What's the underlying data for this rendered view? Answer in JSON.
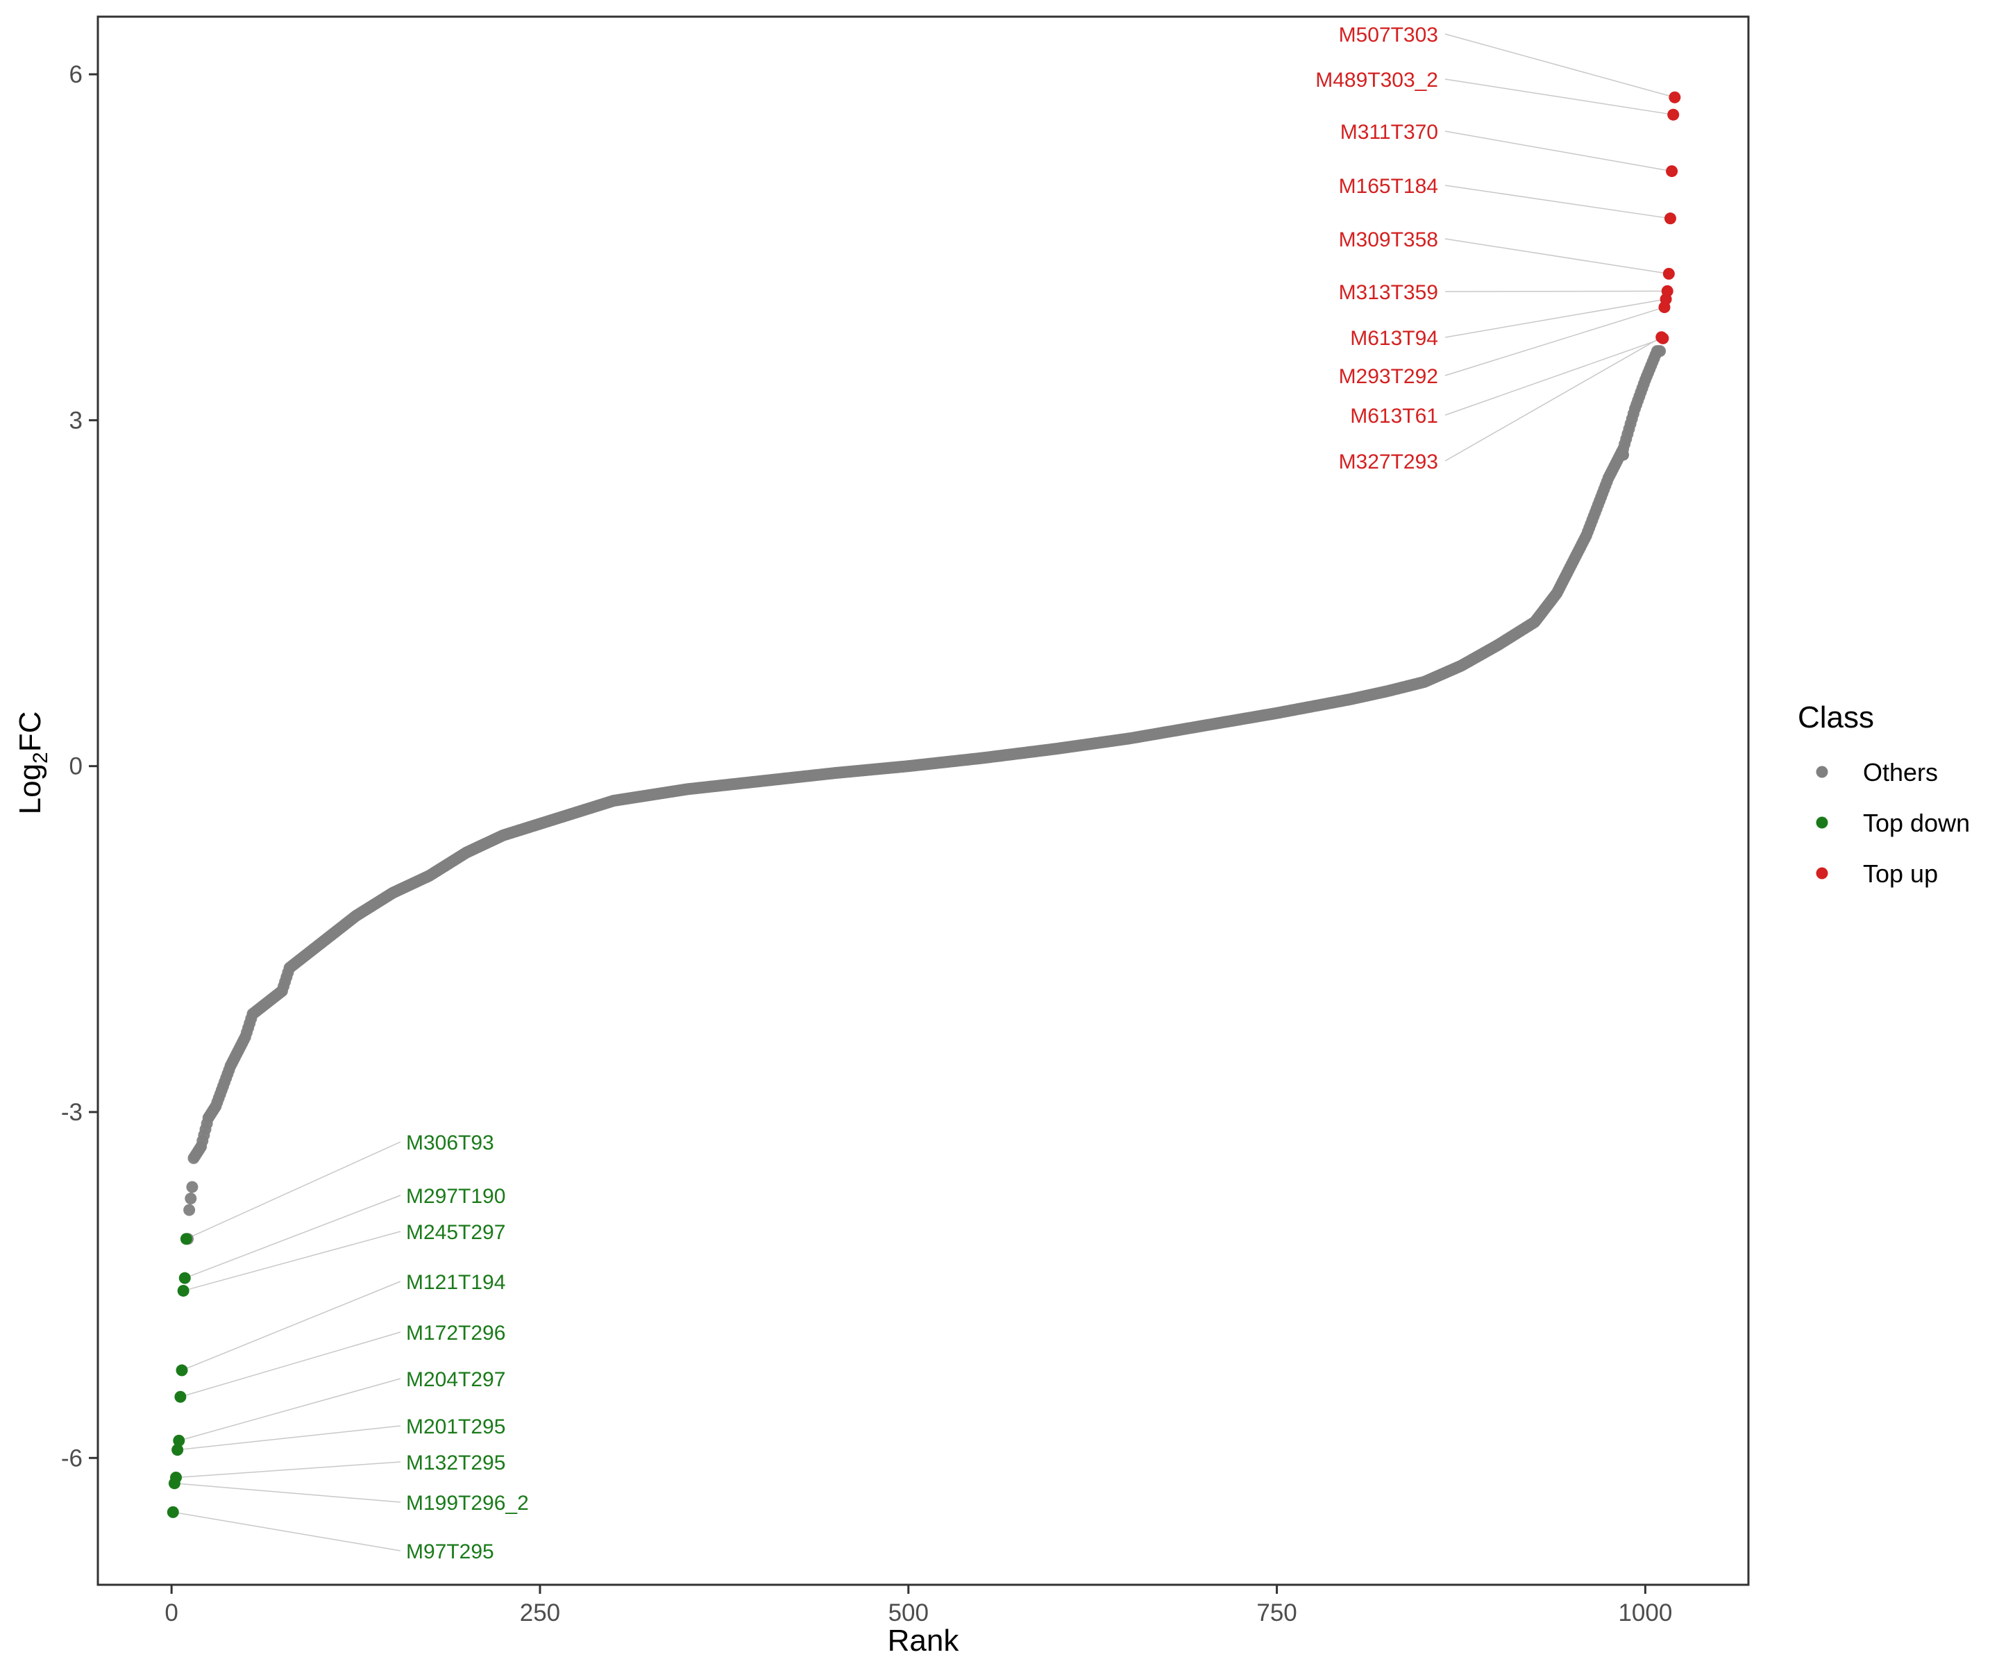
{
  "chart_data": {
    "type": "scatter",
    "title": "",
    "xlabel": "Rank",
    "ylabel_main": "Log",
    "ylabel_sub": "2",
    "ylabel_rest": "FC",
    "xlim": [
      -50,
      1070
    ],
    "ylim": [
      -7.1,
      6.5
    ],
    "x_ticks": [
      0,
      250,
      500,
      750,
      1000
    ],
    "x_tick_labels": [
      "0",
      "250",
      "500",
      "750",
      "1000"
    ],
    "y_ticks": [
      6,
      3,
      0,
      -3,
      -6
    ],
    "y_tick_labels": [
      "6",
      "3",
      "0",
      "-3",
      "-6"
    ],
    "grid": false,
    "n_points": 1020,
    "legend": {
      "title": "Class",
      "position": "right",
      "entries": [
        {
          "label": "Others",
          "color": "#808080"
        },
        {
          "label": "Top down",
          "color": "#1a7a1a"
        },
        {
          "label": "Top up",
          "color": "#d42020"
        }
      ]
    },
    "series": [
      {
        "name": "Others",
        "color": "#808080",
        "rank_range": [
          11,
          1010
        ],
        "curve": [
          [
            11,
            -4.1
          ],
          [
            12,
            -3.85
          ],
          [
            14,
            -3.65
          ],
          [
            15,
            -3.4
          ],
          [
            20,
            -3.3
          ],
          [
            25,
            -3.05
          ],
          [
            30,
            -2.95
          ],
          [
            40,
            -2.6
          ],
          [
            50,
            -2.35
          ],
          [
            55,
            -2.15
          ],
          [
            75,
            -1.95
          ],
          [
            80,
            -1.75
          ],
          [
            100,
            -1.55
          ],
          [
            125,
            -1.3
          ],
          [
            150,
            -1.1
          ],
          [
            175,
            -0.95
          ],
          [
            200,
            -0.75
          ],
          [
            225,
            -0.6
          ],
          [
            250,
            -0.5
          ],
          [
            300,
            -0.3
          ],
          [
            350,
            -0.2
          ],
          [
            400,
            -0.13
          ],
          [
            450,
            -0.06
          ],
          [
            500,
            0.0
          ],
          [
            550,
            0.07
          ],
          [
            600,
            0.15
          ],
          [
            650,
            0.24
          ],
          [
            700,
            0.35
          ],
          [
            750,
            0.46
          ],
          [
            800,
            0.58
          ],
          [
            825,
            0.65
          ],
          [
            850,
            0.73
          ],
          [
            875,
            0.87
          ],
          [
            900,
            1.05
          ],
          [
            925,
            1.25
          ],
          [
            940,
            1.5
          ],
          [
            960,
            2.0
          ],
          [
            975,
            2.5
          ],
          [
            985,
            2.75
          ],
          [
            993,
            3.1
          ],
          [
            1000,
            3.35
          ],
          [
            1008,
            3.6
          ]
        ],
        "outliers": [
          [
            985,
            2.7
          ]
        ]
      },
      {
        "name": "Top down",
        "color": "#1a7a1a",
        "points": [
          {
            "x": 1,
            "y": -6.47,
            "label": "M97T295"
          },
          {
            "x": 2,
            "y": -6.22,
            "label": "M199T296_2"
          },
          {
            "x": 3,
            "y": -6.17,
            "label": "M132T295"
          },
          {
            "x": 4,
            "y": -5.93,
            "label": "M201T295"
          },
          {
            "x": 5,
            "y": -5.85,
            "label": "M204T297"
          },
          {
            "x": 6,
            "y": -5.47,
            "label": "M172T296"
          },
          {
            "x": 7,
            "y": -5.24,
            "label": "M121T194"
          },
          {
            "x": 8,
            "y": -4.55,
            "label": "M245T297"
          },
          {
            "x": 9,
            "y": -4.44,
            "label": "M297T190"
          },
          {
            "x": 10,
            "y": -4.1,
            "label": "M306T93"
          }
        ]
      },
      {
        "name": "Top up",
        "color": "#d42020",
        "points": [
          {
            "x": 1011,
            "y": 3.72,
            "label": "M327T293"
          },
          {
            "x": 1012,
            "y": 3.71,
            "label": "M613T61"
          },
          {
            "x": 1013,
            "y": 3.98,
            "label": "M293T292"
          },
          {
            "x": 1014,
            "y": 4.05,
            "label": "M613T94"
          },
          {
            "x": 1015,
            "y": 4.12,
            "label": "M313T359"
          },
          {
            "x": 1016,
            "y": 4.27,
            "label": "M309T358"
          },
          {
            "x": 1017,
            "y": 4.75,
            "label": "M165T184"
          },
          {
            "x": 1018,
            "y": 5.16,
            "label": "M311T370"
          },
          {
            "x": 1019,
            "y": 5.65,
            "label": "M489T303_2"
          },
          {
            "x": 1020,
            "y": 5.8,
            "label": "M507T303"
          }
        ]
      }
    ]
  }
}
